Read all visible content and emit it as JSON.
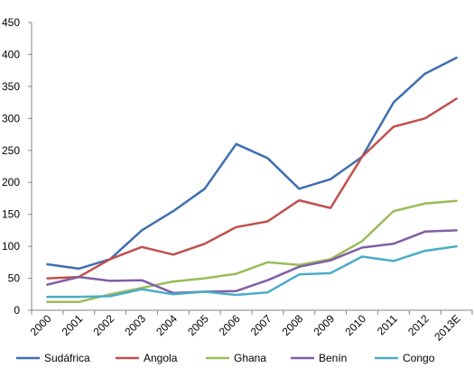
{
  "chart_data": {
    "type": "line",
    "categories": [
      "2000",
      "2001",
      "2002",
      "2003",
      "2004",
      "2005",
      "2006",
      "2007",
      "2008",
      "2009",
      "2010",
      "2011",
      "2012",
      "2013E"
    ],
    "ylim": [
      0,
      450
    ],
    "yticks": [
      0,
      50,
      100,
      150,
      200,
      250,
      300,
      350,
      400,
      450
    ],
    "grid": false,
    "legend_position": "bottom",
    "series": [
      {
        "name": "Sudáfrica",
        "color": "#3F6FB0",
        "values": [
          72,
          65,
          80,
          125,
          155,
          190,
          260,
          238,
          190,
          205,
          240,
          325,
          370,
          395
        ]
      },
      {
        "name": "Angola",
        "color": "#C0504D",
        "values": [
          50,
          52,
          80,
          99,
          87,
          104,
          130,
          139,
          172,
          160,
          240,
          287,
          300,
          331
        ]
      },
      {
        "name": "Ghana",
        "color": "#9BBB59",
        "values": [
          13,
          13,
          25,
          35,
          45,
          50,
          57,
          75,
          71,
          80,
          108,
          155,
          167,
          171
        ]
      },
      {
        "name": "Benín",
        "color": "#7F5FA3",
        "values": [
          40,
          52,
          46,
          47,
          27,
          29,
          30,
          47,
          68,
          78,
          98,
          104,
          123,
          125
        ]
      },
      {
        "name": "Congo",
        "color": "#4BACC6",
        "values": [
          21,
          21,
          22,
          33,
          25,
          29,
          24,
          28,
          56,
          58,
          84,
          77,
          93,
          100
        ]
      }
    ]
  }
}
